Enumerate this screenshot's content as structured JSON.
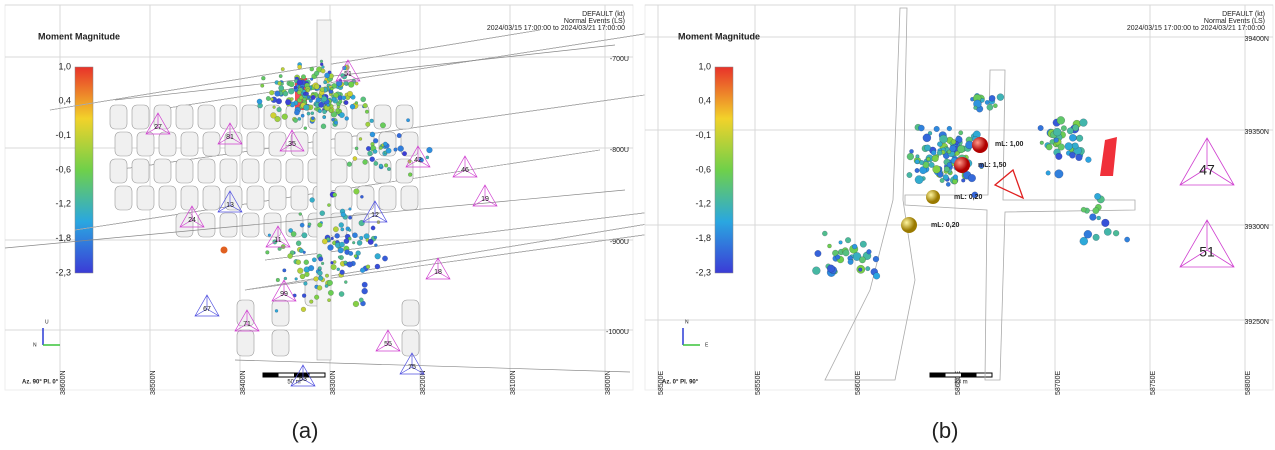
{
  "panels": [
    {
      "title": "Moment Magnitude",
      "colorbar_labels": [
        "1,0",
        "0,4",
        "-0,1",
        "-0,6",
        "-1,2",
        "-1,8",
        "-2,3"
      ],
      "legend": [
        "DEFAULT (kt)",
        "Normal Events (LS)",
        "2024/03/15 17:00:00 to 2024/03/21 17:00:00"
      ],
      "right_axis_labels": [
        "-700U",
        "-800U",
        "-900U",
        "-1000U"
      ],
      "bottom_axis_labels": [
        "38600N",
        "38500N",
        "38400N",
        "38300N",
        "38200N",
        "38100N",
        "38000N"
      ],
      "stations": [
        "27",
        "81",
        "35",
        "42",
        "46",
        "19",
        "24",
        "13",
        "12",
        "11",
        "18",
        "99",
        "67",
        "71",
        "55",
        "75",
        "63",
        "51"
      ],
      "scale_label": "50 m",
      "view_label": "Az. 90° Pl. 0°",
      "axis_letters": [
        "U",
        "N"
      ],
      "caption": "(a)"
    },
    {
      "title": "Moment Magnitude",
      "colorbar_labels": [
        "1,0",
        "0,4",
        "-0,1",
        "-0,6",
        "-1,2",
        "-1,8",
        "-2,3"
      ],
      "legend": [
        "DEFAULT (kt)",
        "Normal Events (LS)",
        "2024/03/15 17:00:00 to 2024/03/21 17:00:00"
      ],
      "right_axis_labels": [
        "39400N",
        "39350N",
        "39300N",
        "39250N"
      ],
      "bottom_axis_labels": [
        "58500E",
        "58550E",
        "58600E",
        "58650E",
        "58700E",
        "58750E",
        "58800E"
      ],
      "stations": [
        "47",
        "51"
      ],
      "magnitude_labels": [
        "mL: 1,00",
        "mL: 1,50",
        "mL: 0,20",
        "mL: 0,20"
      ],
      "scale_label": "33 m",
      "view_label": "Az. 0° Pl. 90°",
      "axis_letters": [
        "N",
        "E"
      ],
      "caption": "(b)"
    }
  ]
}
